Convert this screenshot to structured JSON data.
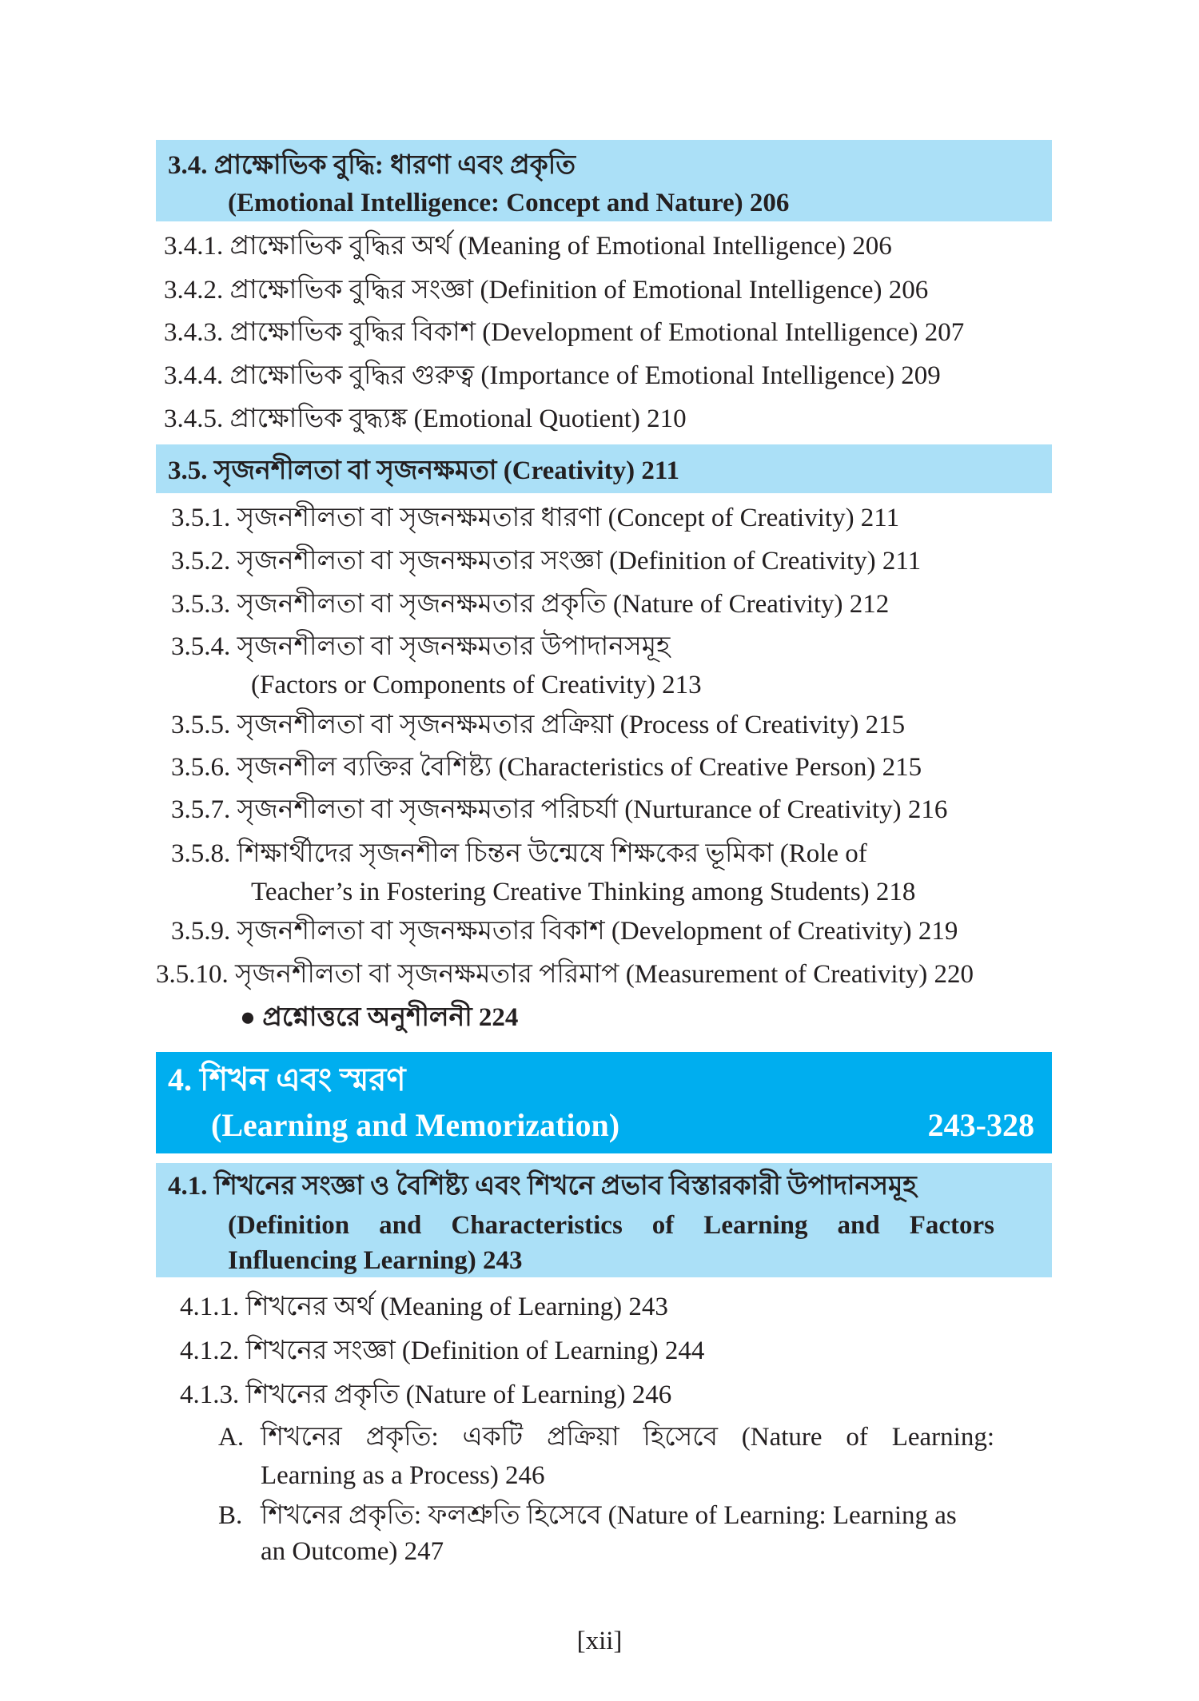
{
  "sections": [
    {
      "number": "3.4.",
      "title_bn": "প্রাক্ষোভিক বুদ্ধি: ধারণা এবং প্রকৃতি",
      "title_en": "(Emotional Intelligence: Concept and Nature) 206",
      "items": [
        {
          "number": "3.4.1.",
          "text": "প্রাক্ষোভিক বুদ্ধির অর্থ (Meaning of Emotional Intelligence) 206"
        },
        {
          "number": "3.4.2.",
          "text": "প্রাক্ষোভিক বুদ্ধির সংজ্ঞা (Definition of Emotional Intelligence) 206"
        },
        {
          "number": "3.4.3.",
          "text": "প্রাক্ষোভিক বুদ্ধির বিকাশ (Development of Emotional Intelligence) 207"
        },
        {
          "number": "3.4.4.",
          "text": "প্রাক্ষোভিক বুদ্ধির গুরুত্ব (Importance of Emotional Intelligence) 209"
        },
        {
          "number": "3.4.5.",
          "text": "প্রাক্ষোভিক বুদ্ধ্যঙ্ক (Emotional Quotient) 210"
        }
      ]
    },
    {
      "number": "3.5.",
      "title": "সৃজনশীলতা বা সৃজনক্ষমতা (Creativity) 211",
      "items": [
        {
          "number": "3.5.1.",
          "text": "সৃজনশীলতা বা সৃজনক্ষমতার ধারণা (Concept of Creativity) 211"
        },
        {
          "number": "3.5.2.",
          "text": "সৃজনশীলতা বা সৃজনক্ষমতার সংজ্ঞা (Definition of Creativity) 211"
        },
        {
          "number": "3.5.3.",
          "text": "সৃজনশীলতা বা সৃজনক্ষমতার প্রকৃতি (Nature of Creativity) 212"
        },
        {
          "number": "3.5.4.",
          "text": "সৃজনশীলতা বা সৃজনক্ষমতার উপাদানসমূহ",
          "text2": "(Factors or Components of Creativity) 213"
        },
        {
          "number": "3.5.5.",
          "text": "সৃজনশীলতা বা সৃজনক্ষমতার প্রক্রিয়া (Process of Creativity) 215"
        },
        {
          "number": "3.5.6.",
          "text": "সৃজনশীল ব্যক্তির বৈশিষ্ট্য (Characteristics of Creative Person) 215"
        },
        {
          "number": "3.5.7.",
          "text": "সৃজনশীলতা বা সৃজনক্ষমতার পরিচর্যা (Nurturance of Creativity) 216"
        },
        {
          "number": "3.5.8.",
          "text": "শিক্ষার্থীদের সৃজনশীল চিন্তন উন্মেষে শিক্ষকের ভূমিকা (Role of",
          "text2": "Teacher’s in Fostering Creative Thinking among Students) 218"
        },
        {
          "number": "3.5.9.",
          "text": "সৃজনশীলতা বা সৃজনক্ষমতার বিকাশ (Development of Creativity) 219"
        },
        {
          "number": "3.5.10.",
          "text": "সৃজনশীলতা বা সৃজনক্ষমতার পরিমাপ (Measurement of Creativity) 220"
        }
      ],
      "exercise": "প্রশ্নোত্তরে অনুশীলনী 224"
    }
  ],
  "chapter": {
    "number": "4.",
    "title_bn": "শিখন এবং স্মরণ",
    "title_en": "(Learning and Memorization)",
    "pages": "243-328"
  },
  "section41": {
    "number": "4.1.",
    "title_bn": "শিখনের সংজ্ঞা ও বৈশিষ্ট্য এবং শিখনে প্রভাব বিস্তারকারী উপাদানসমূহ",
    "title_en1": "(Definition and Characteristics of Learning and Factors",
    "title_en2": "Influencing Learning) 243",
    "items": [
      {
        "number": "4.1.1.",
        "text": "শিখনের অর্থ (Meaning of Learning) 243"
      },
      {
        "number": "4.1.2.",
        "text": "শিখনের সংজ্ঞা (Definition of Learning) 244"
      },
      {
        "number": "4.1.3.",
        "text": "শিখনের প্রকৃতি (Nature of Learning) 246"
      }
    ],
    "sub": [
      {
        "label": "A.",
        "text": "শিখনের প্রকৃতি: একটি প্রক্রিয়া হিসেবে (Nature of Learning:",
        "text2": "Learning as a Process) 246"
      },
      {
        "label": "B.",
        "text": "শিখনের প্রকৃতি: ফলশ্রুতি হিসেবে (Nature of Learning: Learning as",
        "text2": "an Outcome) 247"
      }
    ]
  },
  "page_number": "[xii]",
  "colors": {
    "light_band": "#abe0f7",
    "dark_band": "#00aeef"
  }
}
